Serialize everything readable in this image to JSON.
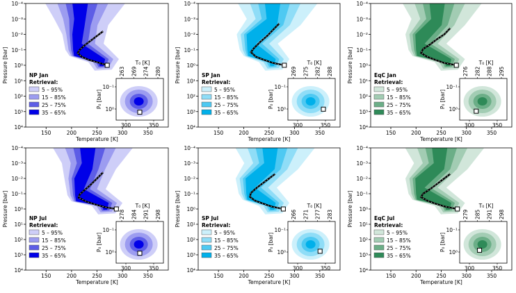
{
  "colors": {
    "blue": [
      "#cecef8",
      "#9c9cf0",
      "#5d5de6",
      "#0000e8"
    ],
    "cyan": [
      "#ccf0fb",
      "#8fddf7",
      "#4ec9f2",
      "#00b0ea"
    ],
    "green": [
      "#d1e6da",
      "#a2ccb3",
      "#6bae87",
      "#2e8a58"
    ]
  },
  "chart_data": [
    {
      "type": "area",
      "panel_label": "NP Jan",
      "palette": "blue",
      "xlabel": "Temperature [K]",
      "ylabel": "Pressure [bar]",
      "xlim": [
        110,
        390
      ],
      "ylim_log10": [
        4,
        -4
      ],
      "x_ticks": [
        "150",
        "200",
        "250",
        "300",
        "350"
      ],
      "y_ticks": [
        "10⁻⁴",
        "10⁻³",
        "10⁻²",
        "10⁻¹",
        "10⁰",
        "10¹",
        "10²",
        "10³",
        "10⁴"
      ],
      "retrieval_title": "Retrieval:",
      "legend": [
        "5 – 95%",
        "15 – 85%",
        "25 – 75%",
        "35 – 65%"
      ],
      "profile": {
        "T_top": 215,
        "T_min": 208,
        "T_bot": 258,
        "P_min_log10": -1.0
      },
      "true_profile_bottom": {
        "T": 270,
        "P_log10": 0.0
      },
      "profile_samples": [
        {
          "T": 262,
          "P_log10": -2.2
        },
        {
          "T": 250,
          "P_log10": -1.9
        },
        {
          "T": 238,
          "P_log10": -1.6
        },
        {
          "T": 226,
          "P_log10": -1.3
        },
        {
          "T": 216,
          "P_log10": -1.0
        },
        {
          "T": 212,
          "P_log10": -0.8
        },
        {
          "T": 220,
          "P_log10": -0.55
        },
        {
          "T": 234,
          "P_log10": -0.35
        },
        {
          "T": 250,
          "P_log10": -0.2
        },
        {
          "T": 270,
          "P_log10": 0.0
        }
      ],
      "inset": {
        "xlabel": "T₀ [K]",
        "ylabel": "P₀ [bar]",
        "top_ticks": [
          "263",
          "269",
          "274",
          "280"
        ],
        "bottom_ticks": [
          "300",
          "350"
        ],
        "y_ticks": [
          "10⁻¹",
          "10⁰"
        ],
        "true_value": {
          "T0": 330,
          "P0_log10": 0.2
        }
      }
    },
    {
      "type": "area",
      "panel_label": "SP Jan",
      "palette": "cyan",
      "xlabel": "Temperature [K]",
      "ylabel": "Pressure [bar]",
      "xlim": [
        110,
        390
      ],
      "ylim_log10": [
        4,
        -4
      ],
      "x_ticks": [
        "150",
        "200",
        "250",
        "300",
        "350"
      ],
      "y_ticks": [
        "10⁻⁴",
        "10⁻³",
        "10⁻²",
        "10⁻¹",
        "10⁰",
        "10¹",
        "10²",
        "10³",
        "10⁴"
      ],
      "retrieval_title": "Retrieval:",
      "legend": [
        "5 – 95%",
        "15 – 85%",
        "25 – 75%",
        "35 – 65%"
      ],
      "profile": {
        "T_top": 255,
        "T_min": 212,
        "T_bot": 255,
        "P_min_log10": -1.0
      },
      "true_profile_bottom": {
        "T": 280,
        "P_log10": 0.0
      },
      "profile_samples": [
        {
          "T": 270,
          "P_log10": -2.7
        },
        {
          "T": 258,
          "P_log10": -2.3
        },
        {
          "T": 246,
          "P_log10": -1.9
        },
        {
          "T": 232,
          "P_log10": -1.5
        },
        {
          "T": 220,
          "P_log10": -1.1
        },
        {
          "T": 214,
          "P_log10": -0.85
        },
        {
          "T": 224,
          "P_log10": -0.55
        },
        {
          "T": 240,
          "P_log10": -0.35
        },
        {
          "T": 258,
          "P_log10": -0.15
        },
        {
          "T": 280,
          "P_log10": 0.0
        }
      ],
      "inset": {
        "xlabel": "T₀ [K]",
        "ylabel": "P₀ [bar]",
        "top_ticks": [
          "269",
          "275",
          "282",
          "288"
        ],
        "bottom_ticks": [
          "300",
          "350"
        ],
        "y_ticks": [
          "10⁻¹",
          "10⁰"
        ],
        "true_value": {
          "T0": 355,
          "P0_log10": 0.05
        }
      }
    },
    {
      "type": "area",
      "panel_label": "EqC Jan",
      "palette": "green",
      "xlabel": "Temperature [K]",
      "ylabel": "Pressure [bar]",
      "xlim": [
        110,
        390
      ],
      "ylim_log10": [
        4,
        -4
      ],
      "x_ticks": [
        "150",
        "200",
        "250",
        "300",
        "350"
      ],
      "y_ticks": [
        "10⁻⁴",
        "10⁻³",
        "10⁻²",
        "10⁻¹",
        "10⁰",
        "10¹",
        "10²",
        "10³",
        "10⁴"
      ],
      "retrieval_title": "Retrieval:",
      "legend": [
        "5 – 95%",
        "15 – 85%",
        "25 – 75%",
        "35 – 65%"
      ],
      "profile": {
        "T_top": 240,
        "T_min": 205,
        "T_bot": 262,
        "P_min_log10": -1.0
      },
      "true_profile_bottom": {
        "T": 280,
        "P_log10": 0.0
      },
      "profile_samples": [
        {
          "T": 268,
          "P_log10": -2.4
        },
        {
          "T": 256,
          "P_log10": -2.0
        },
        {
          "T": 242,
          "P_log10": -1.7
        },
        {
          "T": 228,
          "P_log10": -1.35
        },
        {
          "T": 214,
          "P_log10": -1.05
        },
        {
          "T": 210,
          "P_log10": -0.8
        },
        {
          "T": 222,
          "P_log10": -0.55
        },
        {
          "T": 238,
          "P_log10": -0.35
        },
        {
          "T": 256,
          "P_log10": -0.15
        },
        {
          "T": 280,
          "P_log10": 0.0
        }
      ],
      "inset": {
        "xlabel": "T₀ [K]",
        "ylabel": "P₀ [bar]",
        "top_ticks": [
          "276",
          "282",
          "288",
          "295"
        ],
        "bottom_ticks": [
          "300",
          "350"
        ],
        "y_ticks": [
          "10⁻¹",
          "10⁰"
        ],
        "true_value": {
          "T0": 315,
          "P0_log10": 0.15
        }
      }
    },
    {
      "type": "area",
      "panel_label": "NP Jul",
      "palette": "blue",
      "xlabel": "Temperature [K]",
      "ylabel": "Pressure [bar]",
      "xlim": [
        110,
        390
      ],
      "ylim_log10": [
        4,
        -4
      ],
      "x_ticks": [
        "150",
        "200",
        "250",
        "300",
        "350"
      ],
      "y_ticks": [
        "10⁻⁴",
        "10⁻³",
        "10⁻²",
        "10⁻¹",
        "10⁰",
        "10¹",
        "10²",
        "10³",
        "10⁴"
      ],
      "retrieval_title": "Retrieval:",
      "legend": [
        "5 – 95%",
        "15 – 85%",
        "25 – 75%",
        "35 – 65%"
      ],
      "profile": {
        "T_top": 230,
        "T_min": 212,
        "T_bot": 265,
        "P_min_log10": -0.9
      },
      "true_profile_bottom": {
        "T": 288,
        "P_log10": 0.0
      },
      "profile_samples": [
        {
          "T": 262,
          "P_log10": -2.4
        },
        {
          "T": 250,
          "P_log10": -2.0
        },
        {
          "T": 238,
          "P_log10": -1.6
        },
        {
          "T": 226,
          "P_log10": -1.25
        },
        {
          "T": 216,
          "P_log10": -0.95
        },
        {
          "T": 214,
          "P_log10": -0.75
        },
        {
          "T": 228,
          "P_log10": -0.5
        },
        {
          "T": 246,
          "P_log10": -0.3
        },
        {
          "T": 266,
          "P_log10": -0.12
        },
        {
          "T": 288,
          "P_log10": 0.0
        }
      ],
      "inset": {
        "xlabel": "T₀ [K]",
        "ylabel": "P₀ [bar]",
        "top_ticks": [
          "278",
          "284",
          "291",
          "298"
        ],
        "bottom_ticks": [
          "300",
          "350"
        ],
        "y_ticks": [
          "10⁻¹",
          "10⁰"
        ],
        "true_value": {
          "T0": 330,
          "P0_log10": 0.1
        }
      }
    },
    {
      "type": "area",
      "panel_label": "SP Jul",
      "palette": "cyan",
      "xlabel": "Temperature [K]",
      "ylabel": "Pressure [bar]",
      "xlim": [
        110,
        390
      ],
      "ylim_log10": [
        4,
        -4
      ],
      "x_ticks": [
        "150",
        "200",
        "250",
        "300",
        "350"
      ],
      "y_ticks": [
        "10⁻⁴",
        "10⁻³",
        "10⁻²",
        "10⁻¹",
        "10⁰",
        "10¹",
        "10²",
        "10³",
        "10⁴"
      ],
      "retrieval_title": "Retrieval:",
      "legend": [
        "5 – 95%",
        "15 – 85%",
        "25 – 75%",
        "35 – 65%"
      ],
      "profile": {
        "T_top": 250,
        "T_min": 210,
        "T_bot": 255,
        "P_min_log10": -1.0
      },
      "true_profile_bottom": {
        "T": 278,
        "P_log10": 0.0
      },
      "profile_samples": [
        {
          "T": 262,
          "P_log10": -2.3
        },
        {
          "T": 250,
          "P_log10": -2.0
        },
        {
          "T": 238,
          "P_log10": -1.7
        },
        {
          "T": 226,
          "P_log10": -1.4
        },
        {
          "T": 214,
          "P_log10": -1.05
        },
        {
          "T": 212,
          "P_log10": -0.8
        },
        {
          "T": 222,
          "P_log10": -0.55
        },
        {
          "T": 238,
          "P_log10": -0.35
        },
        {
          "T": 256,
          "P_log10": -0.15
        },
        {
          "T": 278,
          "P_log10": 0.0
        }
      ],
      "inset": {
        "xlabel": "T₀ [K]",
        "ylabel": "P₀ [bar]",
        "top_ticks": [
          "266",
          "271",
          "277",
          "283"
        ],
        "bottom_ticks": [
          "300",
          "350"
        ],
        "y_ticks": [
          "10⁻¹",
          "10⁰"
        ],
        "true_value": {
          "T0": 348,
          "P0_log10": 0.0
        }
      }
    },
    {
      "type": "area",
      "panel_label": "EqC Jul",
      "palette": "green",
      "xlabel": "Temperature [K]",
      "ylabel": "Pressure [bar]",
      "xlim": [
        110,
        390
      ],
      "ylim_log10": [
        4,
        -4
      ],
      "x_ticks": [
        "150",
        "200",
        "250",
        "300",
        "350"
      ],
      "y_ticks": [
        "10⁻⁴",
        "10⁻³",
        "10⁻²",
        "10⁻¹",
        "10⁰",
        "10¹",
        "10²",
        "10³",
        "10⁴"
      ],
      "retrieval_title": "Retrieval:",
      "legend": [
        "5 – 95%",
        "15 – 85%",
        "25 – 75%",
        "35 – 65%"
      ],
      "profile": {
        "T_top": 245,
        "T_min": 205,
        "T_bot": 262,
        "P_min_log10": -1.0
      },
      "true_profile_bottom": {
        "T": 282,
        "P_log10": 0.0
      },
      "profile_samples": [
        {
          "T": 268,
          "P_log10": -2.3
        },
        {
          "T": 256,
          "P_log10": -2.0
        },
        {
          "T": 242,
          "P_log10": -1.65
        },
        {
          "T": 228,
          "P_log10": -1.3
        },
        {
          "T": 214,
          "P_log10": -1.0
        },
        {
          "T": 210,
          "P_log10": -0.78
        },
        {
          "T": 222,
          "P_log10": -0.55
        },
        {
          "T": 238,
          "P_log10": -0.35
        },
        {
          "T": 258,
          "P_log10": -0.15
        },
        {
          "T": 282,
          "P_log10": 0.0
        }
      ],
      "inset": {
        "xlabel": "T₀ [K]",
        "ylabel": "P₀ [bar]",
        "top_ticks": [
          "279",
          "285",
          "291",
          "298"
        ],
        "bottom_ticks": [
          "300",
          "350"
        ],
        "y_ticks": [
          "10⁻¹",
          "10⁰"
        ],
        "true_value": {
          "T0": 322,
          "P0_log10": -0.05
        }
      }
    }
  ]
}
